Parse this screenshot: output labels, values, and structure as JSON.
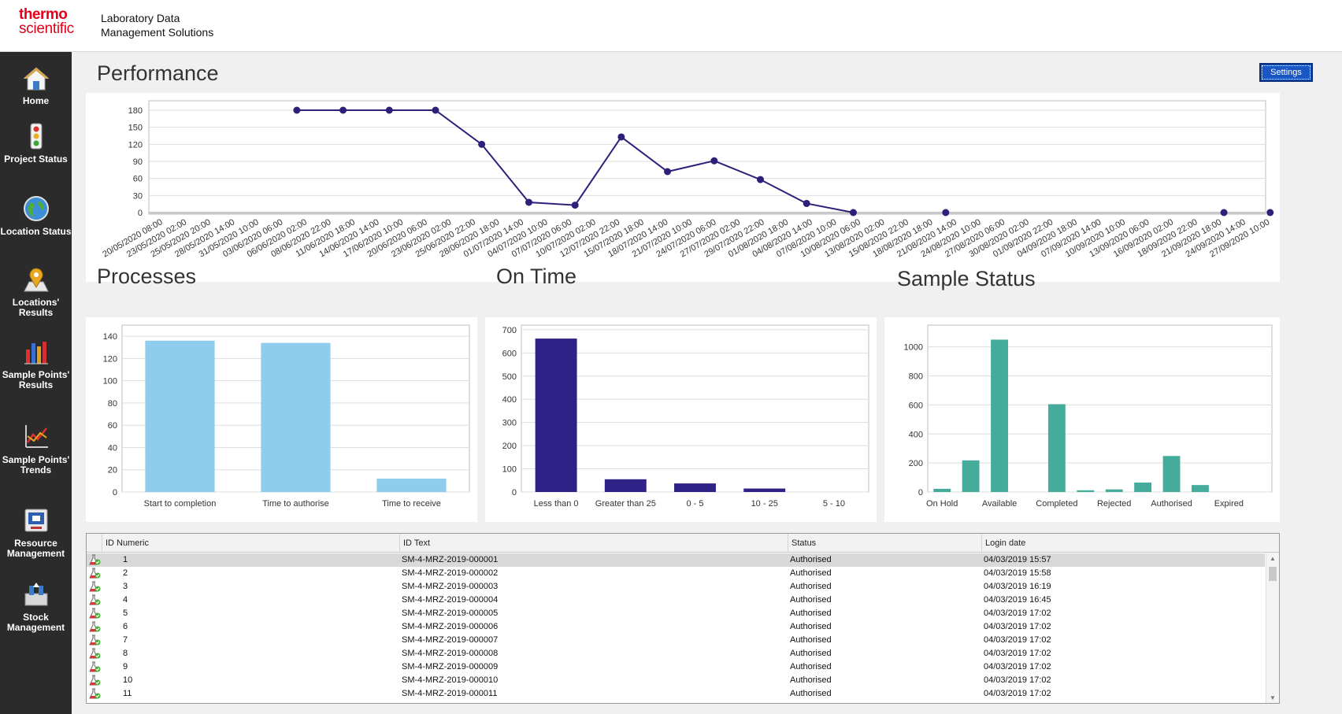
{
  "header": {
    "logo_line1": "thermo",
    "logo_line2": "scientific",
    "app_title_line1": "Laboratory Data",
    "app_title_line2": "Management Solutions"
  },
  "sidebar": {
    "items": [
      {
        "label": "Home",
        "icon": "home-icon"
      },
      {
        "label": "Project Status",
        "icon": "traffic-light-icon"
      },
      {
        "label": "Location Status",
        "icon": "globe-icon"
      },
      {
        "label": "Locations' Results",
        "icon": "map-pin-icon"
      },
      {
        "label": "Sample Points' Results",
        "icon": "bar-chart-icon"
      },
      {
        "label": "Sample Points' Trends",
        "icon": "trend-chart-icon"
      },
      {
        "label": "Resource Management",
        "icon": "monitor-icon"
      },
      {
        "label": "Stock Management",
        "icon": "stock-icon"
      }
    ]
  },
  "sections": {
    "performance": "Performance",
    "processes": "Processes",
    "on_time": "On Time",
    "sample_status": "Sample Status"
  },
  "settings_label": "Settings",
  "chart_data": [
    {
      "id": "performance",
      "type": "line",
      "color": "#2e1f7a",
      "ylim": [
        0,
        180
      ],
      "yticks": [
        0,
        30,
        60,
        90,
        120,
        150,
        180
      ],
      "categories": [
        "20/05/2020 08:00",
        "23/05/2020 02:00",
        "25/05/2020 20:00",
        "28/05/2020 14:00",
        "31/05/2020 10:00",
        "03/06/2020 06:00",
        "06/06/2020 02:00",
        "08/06/2020 22:00",
        "11/06/2020 18:00",
        "14/06/2020 14:00",
        "17/06/2020 10:00",
        "20/06/2020 06:00",
        "23/06/2020 02:00",
        "25/06/2020 22:00",
        "28/06/2020 18:00",
        "01/07/2020 14:00",
        "04/07/2020 10:00",
        "07/07/2020 06:00",
        "10/07/2020 02:00",
        "12/07/2020 22:00",
        "15/07/2020 18:00",
        "18/07/2020 14:00",
        "21/07/2020 10:00",
        "24/07/2020 06:00",
        "27/07/2020 02:00",
        "29/07/2020 22:00",
        "01/08/2020 18:00",
        "04/08/2020 14:00",
        "07/08/2020 10:00",
        "10/08/2020 06:00",
        "13/08/2020 02:00",
        "15/08/2020 22:00",
        "18/08/2020 18:00",
        "21/08/2020 14:00",
        "24/08/2020 10:00",
        "27/08/2020 06:00",
        "30/08/2020 02:00",
        "01/09/2020 22:00",
        "04/09/2020 18:00",
        "07/09/2020 14:00",
        "10/09/2020 10:00",
        "13/09/2020 06:00",
        "16/09/2020 02:00",
        "18/09/2020 22:00",
        "21/09/2020 18:00",
        "24/09/2020 14:00",
        "27/09/2020 10:00"
      ],
      "points": [
        {
          "x": 5.56,
          "y": 180
        },
        {
          "x": 7.48,
          "y": 180
        },
        {
          "x": 9.4,
          "y": 180
        },
        {
          "x": 11.32,
          "y": 180
        },
        {
          "x": 13.24,
          "y": 120
        },
        {
          "x": 15.2,
          "y": 18
        },
        {
          "x": 17.12,
          "y": 13
        },
        {
          "x": 19.04,
          "y": 133
        },
        {
          "x": 20.96,
          "y": 72
        },
        {
          "x": 22.9,
          "y": 91
        },
        {
          "x": 24.82,
          "y": 58
        },
        {
          "x": 26.74,
          "y": 16
        },
        {
          "x": 28.68,
          "y": 0
        },
        {
          "x": 32.52,
          "y": 0
        },
        {
          "x": 44.08,
          "y": 0
        },
        {
          "x": 46.0,
          "y": 0
        }
      ]
    },
    {
      "id": "processes",
      "type": "bar",
      "color": "#8ecdee",
      "categories": [
        "Start to completion",
        "Time to authorise",
        "Time to receive"
      ],
      "values": [
        136,
        134,
        12
      ],
      "ylim": [
        0,
        150
      ],
      "yticks": [
        0,
        20,
        40,
        60,
        80,
        100,
        120,
        140
      ]
    },
    {
      "id": "on_time",
      "type": "bar",
      "color": "#2e2286",
      "categories": [
        "Less than 0",
        "Greater than 25",
        "0 - 5",
        "10 - 25",
        "5 - 10"
      ],
      "values": [
        662,
        55,
        37,
        15,
        0
      ],
      "ylim": [
        0,
        720
      ],
      "yticks": [
        0,
        100,
        200,
        300,
        400,
        500,
        600,
        700
      ]
    },
    {
      "id": "sample_status",
      "type": "bar",
      "color": "#45ab9a",
      "categories": [
        "On Hold",
        "",
        "Available",
        "",
        "Completed",
        "",
        "Rejected",
        "",
        "Authorised",
        "",
        "Expired",
        ""
      ],
      "values": [
        22,
        218,
        1050,
        0,
        605,
        12,
        18,
        65,
        248,
        48,
        0,
        0
      ],
      "ylim": [
        0,
        1150
      ],
      "yticks": [
        0,
        200,
        400,
        600,
        800,
        1000
      ]
    }
  ],
  "grid": {
    "columns": [
      "ID Numeric",
      "ID Text",
      "Status",
      "Login date"
    ],
    "rows": [
      {
        "id": "1",
        "text": "SM-4-MRZ-2019-000001",
        "status": "Authorised",
        "date": "04/03/2019 15:57"
      },
      {
        "id": "2",
        "text": "SM-4-MRZ-2019-000002",
        "status": "Authorised",
        "date": "04/03/2019 15:58"
      },
      {
        "id": "3",
        "text": "SM-4-MRZ-2019-000003",
        "status": "Authorised",
        "date": "04/03/2019 16:19"
      },
      {
        "id": "4",
        "text": "SM-4-MRZ-2019-000004",
        "status": "Authorised",
        "date": "04/03/2019 16:45"
      },
      {
        "id": "5",
        "text": "SM-4-MRZ-2019-000005",
        "status": "Authorised",
        "date": "04/03/2019 17:02"
      },
      {
        "id": "6",
        "text": "SM-4-MRZ-2019-000006",
        "status": "Authorised",
        "date": "04/03/2019 17:02"
      },
      {
        "id": "7",
        "text": "SM-4-MRZ-2019-000007",
        "status": "Authorised",
        "date": "04/03/2019 17:02"
      },
      {
        "id": "8",
        "text": "SM-4-MRZ-2019-000008",
        "status": "Authorised",
        "date": "04/03/2019 17:02"
      },
      {
        "id": "9",
        "text": "SM-4-MRZ-2019-000009",
        "status": "Authorised",
        "date": "04/03/2019 17:02"
      },
      {
        "id": "10",
        "text": "SM-4-MRZ-2019-000010",
        "status": "Authorised",
        "date": "04/03/2019 17:02"
      },
      {
        "id": "11",
        "text": "SM-4-MRZ-2019-000011",
        "status": "Authorised",
        "date": "04/03/2019 17:02"
      }
    ]
  }
}
